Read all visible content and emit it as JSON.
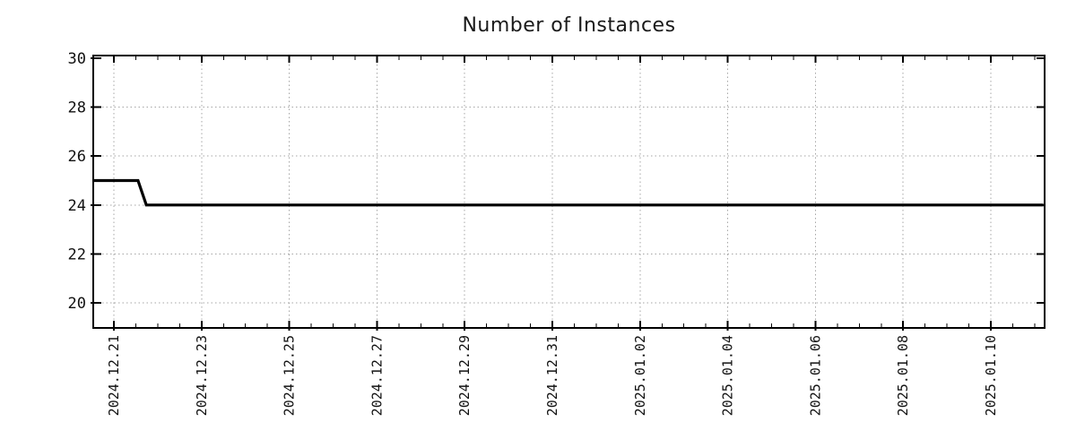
{
  "page": {
    "background_color": "#ffffff"
  },
  "chart_data": {
    "type": "line",
    "title": "Number of Instances",
    "grid": {
      "visible": true,
      "style": "dotted",
      "color": "#a6a6a6"
    },
    "legend": {
      "visible": false
    },
    "colors": {
      "line": "#000000",
      "axis": "#000000",
      "text": "#1a1a1a",
      "tick_text": "#111111"
    },
    "x_axis": {
      "kind": "time",
      "epoch": "2024-12-21 00:00",
      "tick_labels": [
        "2024.12.21",
        "2024.12.23",
        "2024.12.25",
        "2024.12.27",
        "2024.12.29",
        "2024.12.31",
        "2025.01.02",
        "2025.01.04",
        "2025.01.06",
        "2025.01.08",
        "2025.01.10"
      ],
      "tick_day_offsets": [
        0,
        2,
        4,
        6,
        8,
        10,
        12,
        14,
        16,
        18,
        20
      ],
      "minor_tick_step_days": 0.5,
      "range_day_offsets": [
        -0.45,
        21.2
      ],
      "label_rotation_deg": 90
    },
    "y_axis": {
      "tick_labels": [
        "20",
        "22",
        "24",
        "26",
        "28",
        "30"
      ],
      "tick_values": [
        20,
        22,
        24,
        26,
        28,
        30
      ],
      "range": [
        19.0,
        30.07
      ]
    },
    "series": [
      {
        "name": "Number of Instances",
        "color": "#000000",
        "line_width": 3.2,
        "points": [
          {
            "date": "2024-12-20 13:00",
            "day": -0.45,
            "value": 25
          },
          {
            "date": "2024-12-21 13:15",
            "day": 0.55,
            "value": 25
          },
          {
            "date": "2024-12-21 17:40",
            "day": 0.74,
            "value": 24
          },
          {
            "date": "2025-01-11 05:00",
            "day": 21.2,
            "value": 24
          }
        ]
      }
    ]
  }
}
